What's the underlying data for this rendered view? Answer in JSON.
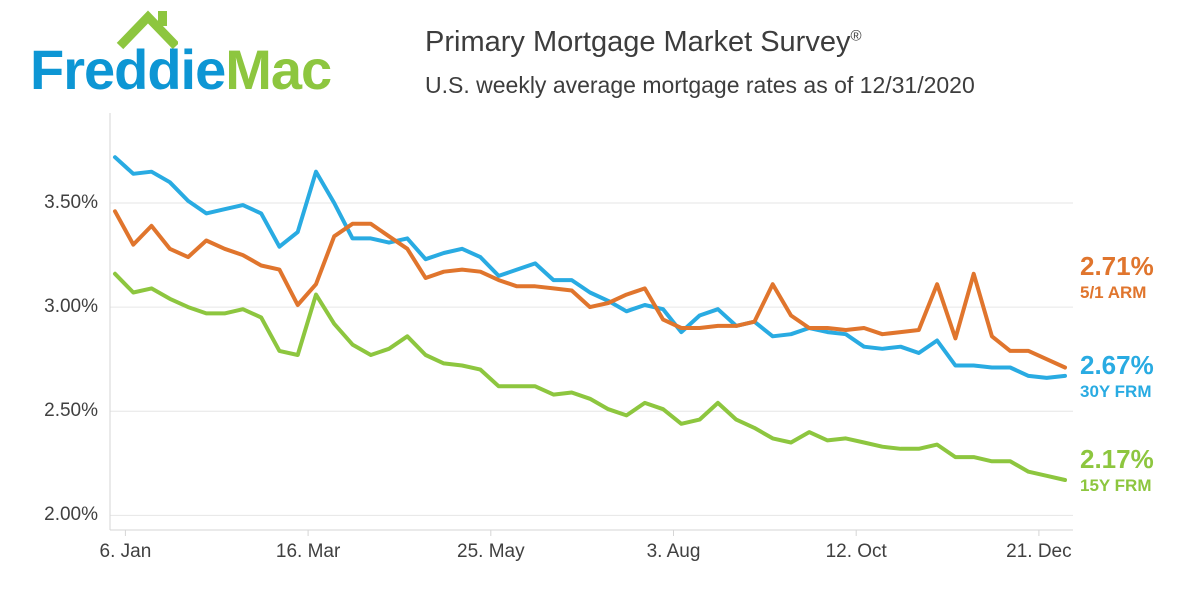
{
  "header": {
    "logo": {
      "word1": "Freddie",
      "word2": "Mac",
      "brand_blue": "#0D96D4",
      "brand_green": "#8DC63F"
    },
    "title": "Primary Mortgage Market Survey",
    "registered": "®",
    "subtitle": "U.S. weekly average mortgage rates as of 12/31/2020"
  },
  "chart_data": {
    "type": "line",
    "title": "Primary Mortgage Market Survey",
    "x_unit": "weekly observations for 2020",
    "x_tick_labels": [
      "6. Jan",
      "16. Mar",
      "25. May",
      "3. Aug",
      "12. Oct",
      "21. Dec"
    ],
    "x_tick_day_offsets": [
      4,
      74,
      144,
      214,
      284,
      354
    ],
    "x_total_days": 364,
    "points_interval_days": 7,
    "ylim": [
      1.93,
      3.86
    ],
    "grid": "horizontal",
    "y_ticks": [
      {
        "label": "3.50%",
        "value": 3.5
      },
      {
        "label": "3.00%",
        "value": 3.0
      },
      {
        "label": "2.50%",
        "value": 2.5
      },
      {
        "label": "2.00%",
        "value": 2.0
      }
    ],
    "series": [
      {
        "name": "30Y FRM",
        "color": "#29ABE2",
        "final_rate": "2.67%",
        "values": [
          3.72,
          3.64,
          3.65,
          3.6,
          3.51,
          3.45,
          3.47,
          3.49,
          3.45,
          3.29,
          3.36,
          3.65,
          3.5,
          3.33,
          3.33,
          3.31,
          3.33,
          3.23,
          3.26,
          3.28,
          3.24,
          3.15,
          3.18,
          3.21,
          3.13,
          3.13,
          3.07,
          3.03,
          2.98,
          3.01,
          2.99,
          2.88,
          2.96,
          2.99,
          2.91,
          2.93,
          2.86,
          2.87,
          2.9,
          2.88,
          2.87,
          2.81,
          2.8,
          2.81,
          2.78,
          2.84,
          2.72,
          2.72,
          2.71,
          2.71,
          2.67,
          2.66,
          2.67
        ]
      },
      {
        "name": "15Y FRM",
        "color": "#8DC63F",
        "final_rate": "2.17%",
        "values": [
          3.16,
          3.07,
          3.09,
          3.04,
          3.0,
          2.97,
          2.97,
          2.99,
          2.95,
          2.79,
          2.77,
          3.06,
          2.92,
          2.82,
          2.77,
          2.8,
          2.86,
          2.77,
          2.73,
          2.72,
          2.7,
          2.62,
          2.62,
          2.62,
          2.58,
          2.59,
          2.56,
          2.51,
          2.48,
          2.54,
          2.51,
          2.44,
          2.46,
          2.54,
          2.46,
          2.42,
          2.37,
          2.35,
          2.4,
          2.36,
          2.37,
          2.35,
          2.33,
          2.32,
          2.32,
          2.34,
          2.28,
          2.28,
          2.26,
          2.26,
          2.21,
          2.19,
          2.17
        ]
      },
      {
        "name": "5/1 ARM",
        "color": "#E0752D",
        "final_rate": "2.71%",
        "values": [
          3.46,
          3.3,
          3.39,
          3.28,
          3.24,
          3.32,
          3.28,
          3.25,
          3.2,
          3.18,
          3.01,
          3.11,
          3.34,
          3.4,
          3.4,
          3.34,
          3.28,
          3.14,
          3.17,
          3.18,
          3.17,
          3.13,
          3.1,
          3.1,
          3.09,
          3.08,
          3.0,
          3.02,
          3.06,
          3.09,
          2.94,
          2.9,
          2.9,
          2.91,
          2.91,
          2.93,
          3.11,
          2.96,
          2.9,
          2.9,
          2.89,
          2.9,
          2.87,
          2.88,
          2.89,
          3.11,
          2.85,
          3.16,
          2.86,
          2.79,
          2.79,
          2.75,
          2.71
        ]
      }
    ],
    "rate_labels": [
      {
        "rate": "2.71%",
        "name": "5/1 ARM",
        "color": "#E0752D"
      },
      {
        "rate": "2.67%",
        "name": "30Y FRM",
        "color": "#29ABE2"
      },
      {
        "rate": "2.17%",
        "name": "15Y FRM",
        "color": "#8DC63F"
      }
    ],
    "legend_position": "right"
  }
}
